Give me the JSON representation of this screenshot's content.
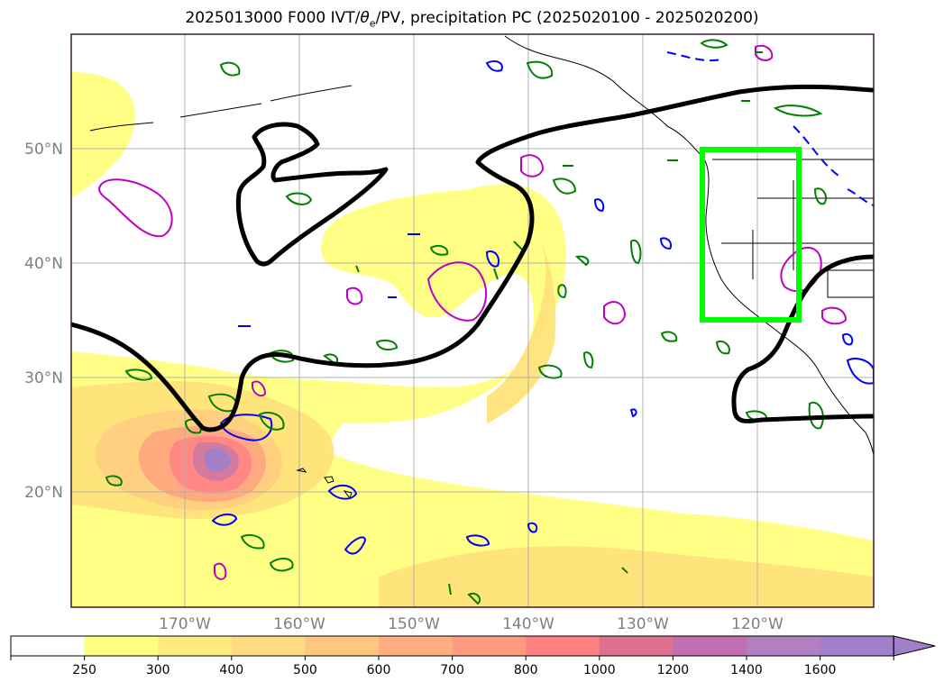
{
  "title": {
    "prefix": "2025013000 F000 IVT/",
    "theta": "θ",
    "theta_sub": "e",
    "suffix": "/PV, precipitation PC (2025020100 - 2025020200)"
  },
  "map": {
    "lat_labels": [
      "50°N",
      "40°N",
      "30°N",
      "20°N"
    ],
    "lon_labels": [
      "170°W",
      "160°W",
      "150°W",
      "140°W",
      "130°W",
      "120°W"
    ],
    "box_color": "#00ff00",
    "ivt_line_color": "#000000",
    "theta_contour_color": "#008000",
    "pv_contour_color": "#0000ff",
    "precip_contour_color": "#c000c0"
  },
  "colorbar": {
    "labels": [
      "250",
      "300",
      "400",
      "500",
      "600",
      "700",
      "800",
      "1000",
      "1200",
      "1400",
      "1600"
    ],
    "colors": [
      "#ffffff",
      "#ffff80",
      "#ffec80",
      "#ffdc80",
      "#ffc680",
      "#ffae80",
      "#ff9a80",
      "#ff8080",
      "#e07090",
      "#c070b0",
      "#b080c0",
      "#a080c8"
    ],
    "extend": "max"
  }
}
